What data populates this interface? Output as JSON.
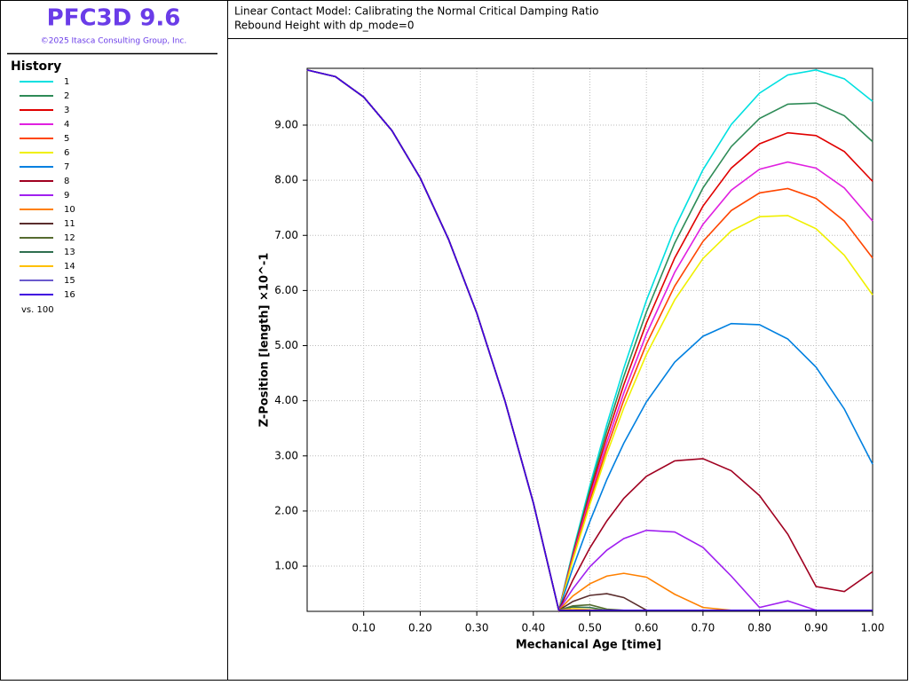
{
  "sidebar": {
    "app_title": "PFC3D 9.6",
    "copyright": "©2025 Itasca Consulting Group, Inc.",
    "legend_title": "History",
    "legend_footer": "vs. 100"
  },
  "chart_data": {
    "type": "line",
    "title": "Linear Contact Model: Calibrating the Normal Critical Damping Ratio",
    "subtitle": "Rebound Height with dp_mode=0",
    "x_label": "Mechanical Age [time]",
    "y_label": "Z-Position [length]  ×10^-1",
    "grid": true,
    "xlim": [
      0,
      1
    ],
    "ylim": [
      0.18,
      10.03
    ],
    "xticks": [
      {
        "value": 0.1,
        "label": "0.10"
      },
      {
        "value": 0.2,
        "label": "0.20"
      },
      {
        "value": 0.3,
        "label": "0.30"
      },
      {
        "value": 0.4,
        "label": "0.40"
      },
      {
        "value": 0.5,
        "label": "0.50"
      },
      {
        "value": 0.6,
        "label": "0.60"
      },
      {
        "value": 0.7,
        "label": "0.70"
      },
      {
        "value": 0.8,
        "label": "0.80"
      },
      {
        "value": 0.9,
        "label": "0.90"
      },
      {
        "value": 1,
        "label": "1.00"
      }
    ],
    "yticks": [
      {
        "value": 1,
        "label": "1.00"
      },
      {
        "value": 2,
        "label": "2.00"
      },
      {
        "value": 3,
        "label": "3.00"
      },
      {
        "value": 4,
        "label": "4.00"
      },
      {
        "value": 5,
        "label": "5.00"
      },
      {
        "value": 6,
        "label": "6.00"
      },
      {
        "value": 7,
        "label": "7.00"
      },
      {
        "value": 8,
        "label": "8.00"
      },
      {
        "value": 9,
        "label": "9.00"
      }
    ],
    "x": [
      0,
      0.05,
      0.1,
      0.15,
      0.2,
      0.25,
      0.3,
      0.35,
      0.4,
      0.445,
      0.47,
      0.5,
      0.53,
      0.56,
      0.6,
      0.65,
      0.7,
      0.75,
      0.8,
      0.85,
      0.9,
      0.95,
      1.0
    ],
    "series": [
      {
        "name": "1",
        "color": "#00e0e0",
        "values": [
          10.0,
          9.88,
          9.51,
          8.9,
          8.04,
          6.93,
          5.59,
          3.99,
          2.15,
          0.2,
          1.27,
          2.46,
          3.57,
          4.59,
          5.82,
          7.13,
          8.19,
          9.01,
          9.58,
          9.91,
          10.0,
          9.84,
          9.43
        ]
      },
      {
        "name": "2",
        "color": "#2e8b57",
        "values": [
          10.0,
          9.88,
          9.51,
          8.9,
          8.04,
          6.93,
          5.59,
          3.99,
          2.15,
          0.2,
          1.23,
          2.39,
          3.46,
          4.44,
          5.61,
          6.86,
          7.86,
          8.61,
          9.12,
          9.38,
          9.4,
          9.17,
          8.7
        ]
      },
      {
        "name": "3",
        "color": "#e00000",
        "values": [
          10.0,
          9.88,
          9.51,
          8.9,
          8.04,
          6.93,
          5.59,
          3.99,
          2.15,
          0.2,
          1.2,
          2.32,
          3.35,
          4.29,
          5.41,
          6.59,
          7.53,
          8.22,
          8.66,
          8.86,
          8.81,
          8.52,
          7.98
        ]
      },
      {
        "name": "4",
        "color": "#e020e0",
        "values": [
          10.0,
          9.88,
          9.51,
          8.9,
          8.04,
          6.93,
          5.59,
          3.99,
          2.15,
          0.2,
          1.17,
          2.25,
          3.24,
          4.14,
          5.21,
          6.33,
          7.2,
          7.82,
          8.2,
          8.33,
          8.22,
          7.86,
          7.26
        ]
      },
      {
        "name": "5",
        "color": "#ff4500",
        "values": [
          10.0,
          9.88,
          9.51,
          8.9,
          8.04,
          6.93,
          5.59,
          3.99,
          2.15,
          0.2,
          1.14,
          2.18,
          3.14,
          4.01,
          5.03,
          6.08,
          6.89,
          7.45,
          7.77,
          7.85,
          7.67,
          7.26,
          6.59
        ]
      },
      {
        "name": "6",
        "color": "#f0f000",
        "values": [
          10.0,
          9.88,
          9.51,
          8.9,
          8.04,
          6.93,
          5.59,
          3.99,
          2.15,
          0.2,
          1.11,
          2.12,
          3.04,
          3.87,
          4.84,
          5.83,
          6.58,
          7.08,
          7.34,
          7.36,
          7.12,
          6.64,
          5.92
        ]
      },
      {
        "name": "7",
        "color": "#0080e0",
        "values": [
          10.0,
          9.88,
          9.51,
          8.9,
          8.04,
          6.93,
          5.59,
          3.99,
          2.15,
          0.2,
          0.97,
          1.81,
          2.57,
          3.23,
          3.98,
          4.7,
          5.17,
          5.4,
          5.38,
          5.12,
          4.61,
          3.85,
          2.85
        ]
      },
      {
        "name": "8",
        "color": "#a00020",
        "values": [
          10.0,
          9.88,
          9.51,
          8.9,
          8.04,
          6.93,
          5.59,
          3.99,
          2.15,
          0.2,
          0.75,
          1.33,
          1.82,
          2.23,
          2.63,
          2.91,
          2.95,
          2.73,
          2.28,
          1.58,
          0.63,
          0.54,
          0.9
        ]
      },
      {
        "name": "9",
        "color": "#a020f0",
        "values": [
          10.0,
          9.88,
          9.51,
          8.9,
          8.04,
          6.93,
          5.59,
          3.99,
          2.15,
          0.2,
          0.59,
          0.99,
          1.29,
          1.5,
          1.65,
          1.62,
          1.34,
          0.82,
          0.25,
          0.37,
          0.2,
          0.2,
          0.2
        ]
      },
      {
        "name": "10",
        "color": "#ff8000",
        "values": [
          10.0,
          9.88,
          9.51,
          8.9,
          8.04,
          6.93,
          5.59,
          3.99,
          2.15,
          0.2,
          0.46,
          0.68,
          0.82,
          0.87,
          0.8,
          0.49,
          0.25,
          0.2,
          0.2,
          0.2,
          0.2,
          0.2,
          0.2
        ]
      },
      {
        "name": "11",
        "color": "#5a2d2d",
        "values": [
          10.0,
          9.88,
          9.51,
          8.9,
          8.04,
          6.93,
          5.59,
          3.99,
          2.15,
          0.2,
          0.36,
          0.47,
          0.5,
          0.43,
          0.2,
          0.2,
          0.2,
          0.2,
          0.2,
          0.2,
          0.2,
          0.2,
          0.2
        ]
      },
      {
        "name": "12",
        "color": "#556b2f",
        "values": [
          10.0,
          9.88,
          9.51,
          8.9,
          8.04,
          6.93,
          5.59,
          3.99,
          2.15,
          0.2,
          0.28,
          0.3,
          0.22,
          0.2,
          0.2,
          0.2,
          0.2,
          0.2,
          0.2,
          0.2,
          0.2,
          0.2,
          0.2
        ]
      },
      {
        "name": "13",
        "color": "#2f6f4f",
        "values": [
          10.0,
          9.88,
          9.51,
          8.9,
          8.04,
          6.93,
          5.59,
          3.99,
          2.15,
          0.2,
          0.26,
          0.25,
          0.2,
          0.2,
          0.2,
          0.2,
          0.2,
          0.2,
          0.2,
          0.2,
          0.2,
          0.2,
          0.2
        ]
      },
      {
        "name": "14",
        "color": "#ffc000",
        "values": [
          10.0,
          9.88,
          9.51,
          8.9,
          8.04,
          6.93,
          5.59,
          3.99,
          2.15,
          0.2,
          0.23,
          0.21,
          0.2,
          0.2,
          0.2,
          0.2,
          0.2,
          0.2,
          0.2,
          0.2,
          0.2,
          0.2,
          0.2
        ]
      },
      {
        "name": "15",
        "color": "#6a5acd",
        "values": [
          10.0,
          9.88,
          9.51,
          8.9,
          8.04,
          6.93,
          5.59,
          3.99,
          2.15,
          0.2,
          0.2,
          0.2,
          0.2,
          0.2,
          0.2,
          0.2,
          0.2,
          0.2,
          0.2,
          0.2,
          0.2,
          0.2,
          0.2
        ]
      },
      {
        "name": "16",
        "color": "#4000e0",
        "values": [
          10.0,
          9.88,
          9.51,
          8.9,
          8.04,
          6.93,
          5.59,
          3.99,
          2.15,
          0.2,
          0.2,
          0.2,
          0.2,
          0.2,
          0.2,
          0.2,
          0.2,
          0.2,
          0.2,
          0.2,
          0.2,
          0.2,
          0.2
        ]
      }
    ]
  }
}
